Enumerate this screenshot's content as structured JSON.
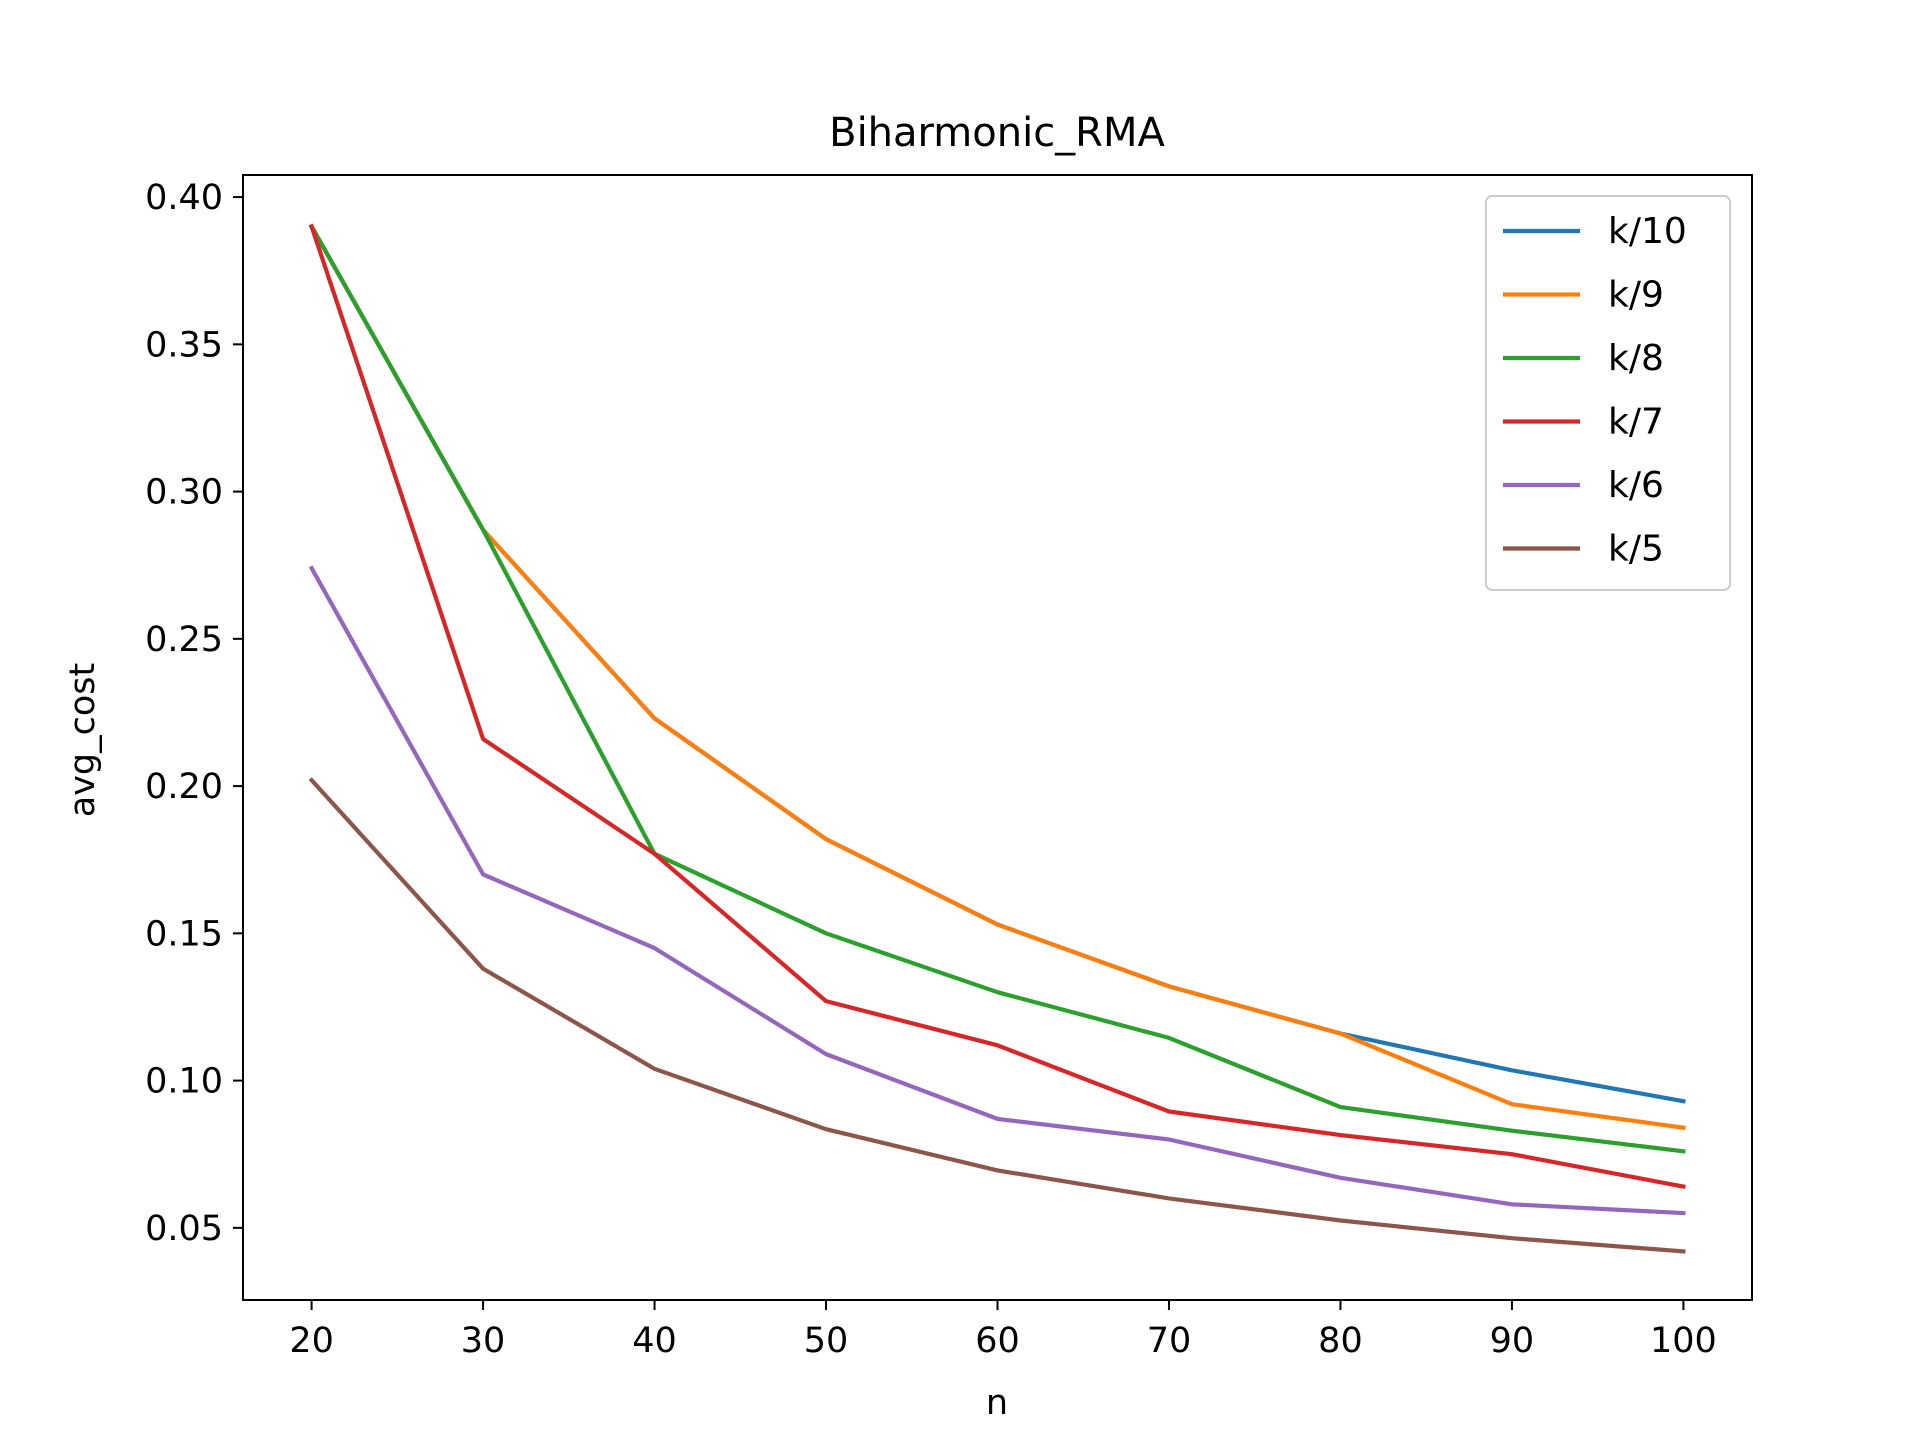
{
  "chart_data": {
    "type": "line",
    "title": "Biharmonic_RMA",
    "xlabel": "n",
    "ylabel": "avg_cost",
    "x": [
      20,
      30,
      40,
      50,
      60,
      70,
      80,
      90,
      100
    ],
    "xticks": [
      20,
      30,
      40,
      50,
      60,
      70,
      80,
      90,
      100
    ],
    "xtick_labels": [
      "20",
      "30",
      "40",
      "50",
      "60",
      "70",
      "80",
      "90",
      "100"
    ],
    "yticks": [
      0.05,
      0.1,
      0.15,
      0.2,
      0.25,
      0.3,
      0.35,
      0.4
    ],
    "ytick_labels": [
      "0.05",
      "0.10",
      "0.15",
      "0.20",
      "0.25",
      "0.30",
      "0.35",
      "0.40"
    ],
    "xlim": [
      16,
      104
    ],
    "ylim": [
      0.0255,
      0.4075
    ],
    "grid": false,
    "legend_position": "top-right",
    "series": [
      {
        "name": "k/10",
        "color": "#1f77b4",
        "values": [
          0.39,
          0.287,
          0.223,
          0.182,
          0.153,
          0.132,
          0.116,
          0.1035,
          0.093
        ]
      },
      {
        "name": "k/9",
        "color": "#ff7f0e",
        "values": [
          0.39,
          0.287,
          0.223,
          0.182,
          0.153,
          0.132,
          0.116,
          0.092,
          0.084
        ]
      },
      {
        "name": "k/8",
        "color": "#2ca02c",
        "values": [
          0.39,
          0.287,
          0.177,
          0.15,
          0.13,
          0.1145,
          0.091,
          0.083,
          0.076
        ]
      },
      {
        "name": "k/7",
        "color": "#d62728",
        "values": [
          0.39,
          0.216,
          0.177,
          0.127,
          0.112,
          0.0895,
          0.0815,
          0.075,
          0.064
        ]
      },
      {
        "name": "k/6",
        "color": "#9467bd",
        "values": [
          0.274,
          0.17,
          0.145,
          0.109,
          0.087,
          0.08,
          0.067,
          0.058,
          0.055
        ]
      },
      {
        "name": "k/5",
        "color": "#8c564b",
        "values": [
          0.202,
          0.138,
          0.104,
          0.0835,
          0.0695,
          0.06,
          0.0525,
          0.0465,
          0.042
        ]
      }
    ]
  }
}
